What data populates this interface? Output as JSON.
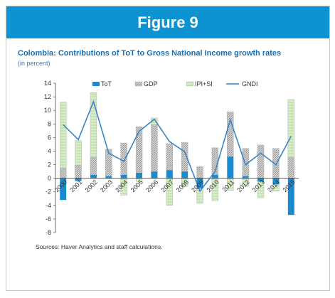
{
  "figure_title": "Figure 9",
  "source_note": "Sources: Haver Analytics and staff calculations.",
  "colors": {
    "banner": "#0d93d2",
    "tot": "#1a8bcf",
    "gdp": "#a6a6a6",
    "ipi_si": "#c7e3b4",
    "gndi": "#3b84c4",
    "title": "#1a6fb3"
  },
  "chart_data": {
    "type": "bar",
    "title": "Colombia: Contributions of ToT to Gross National Income growth rates",
    "subtitle": "(in percent)",
    "categories": [
      "2000",
      "2001",
      "2002",
      "2003",
      "2004",
      "2005",
      "2006",
      "2007",
      "2008",
      "2009",
      "2010",
      "2011",
      "2012",
      "2013",
      "2014",
      "2015"
    ],
    "ylim": [
      -8,
      14
    ],
    "yticks": [
      14,
      12,
      10,
      8,
      6,
      4,
      2,
      0,
      -2,
      -4,
      -6,
      -8
    ],
    "stacked": true,
    "series": [
      {
        "name": "ToT",
        "type": "bar",
        "values": [
          -3.2,
          -0.4,
          0.5,
          0.3,
          0.5,
          0.8,
          1.0,
          1.2,
          1.0,
          -1.5,
          0.5,
          3.2,
          0.3,
          -0.5,
          -0.9,
          -5.4
        ]
      },
      {
        "name": "GDP",
        "type": "bar",
        "values": [
          1.5,
          1.9,
          2.6,
          4.0,
          4.7,
          6.8,
          6.9,
          3.9,
          4.3,
          1.7,
          4.0,
          6.6,
          4.1,
          4.9,
          4.4,
          3.1
        ]
      },
      {
        "name": "IPI+SI",
        "type": "bar",
        "values": [
          9.7,
          3.7,
          9.5,
          0,
          -2.5,
          -0.5,
          1.0,
          -4.0,
          -1.2,
          -2.2,
          -3.3,
          -1.8,
          -1.2,
          -2.4,
          -1.0,
          8.5
        ]
      },
      {
        "name": "GNDI",
        "type": "line",
        "values": [
          7.9,
          5.7,
          11.3,
          3.7,
          2.5,
          6.9,
          8.7,
          5.4,
          3.9,
          -1.9,
          1.0,
          8.6,
          2.0,
          3.7,
          2.0,
          6.2
        ]
      }
    ],
    "legend": "top"
  }
}
